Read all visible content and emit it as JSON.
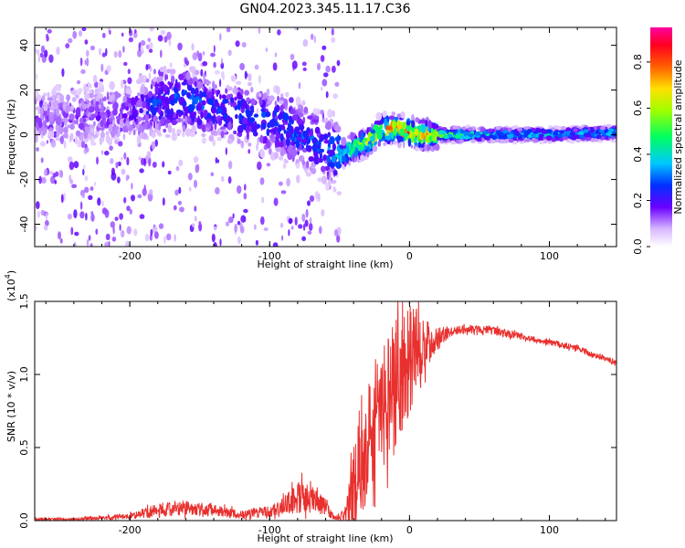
{
  "title": "GN04.2023.345.11.17.C36",
  "chart_data": [
    {
      "type": "heatmap",
      "xlabel": "Height of straight line (km)",
      "ylabel": "Frequency (Hz)",
      "xlim": [
        -268,
        148
      ],
      "ylim": [
        -50,
        48
      ],
      "xticks": [
        -200,
        -100,
        0,
        100
      ],
      "xtick_labels": [
        "-200",
        "-100",
        "0",
        "100"
      ],
      "yticks": [
        -40,
        -20,
        0,
        20,
        40
      ],
      "ytick_labels": [
        "-40",
        "-20",
        "0",
        "20",
        "40"
      ],
      "colorbar": {
        "label": "Normalized spectral amplitude",
        "range": [
          0,
          0.95
        ],
        "ticks": [
          0.0,
          0.2,
          0.4,
          0.6,
          0.8
        ],
        "tick_labels": [
          "0.0",
          "0.2",
          "0.4",
          "0.6",
          "0.8"
        ],
        "colormap": "rainbow (white-violet-blue-cyan-green-yellow-red-magenta)"
      },
      "ridge": {
        "x": [
          -260,
          -200,
          -180,
          -160,
          -140,
          -120,
          -100,
          -80,
          -60,
          -50,
          -40,
          -30,
          -20,
          -10,
          0,
          10,
          20,
          50,
          100,
          148
        ],
        "freq": [
          8,
          10,
          14,
          16,
          12,
          9,
          6,
          1,
          -6,
          -9,
          -6,
          -3,
          2,
          3,
          1,
          0,
          0,
          0,
          0,
          1
        ],
        "amplitude": [
          0.15,
          0.18,
          0.3,
          0.32,
          0.28,
          0.28,
          0.3,
          0.32,
          0.3,
          0.42,
          0.6,
          0.7,
          0.8,
          0.85,
          0.9,
          0.85,
          0.6,
          0.45,
          0.4,
          0.42
        ]
      }
    },
    {
      "type": "line",
      "xlabel": "Height of straight line (km)",
      "ylabel": "SNR (10 * v/v)",
      "multiplier_label": "(x10",
      "multiplier_exp": "4",
      "multiplier_close": ")",
      "xlim": [
        -268,
        148
      ],
      "ylim": [
        0,
        1.5
      ],
      "xticks": [
        -200,
        -100,
        0,
        100
      ],
      "xtick_labels": [
        "-200",
        "-100",
        "0",
        "100"
      ],
      "yticks": [
        0,
        0.5,
        1.0,
        1.5
      ],
      "ytick_labels": [
        "0.0",
        "0.5",
        "1.0",
        "1.5"
      ],
      "color": "#e8302e",
      "series": [
        {
          "x": [
            -268,
            -240,
            -200,
            -180,
            -160,
            -140,
            -120,
            -100,
            -90,
            -80,
            -70,
            -60,
            -55,
            -50,
            -45,
            -40,
            -35,
            -30,
            -25,
            -20,
            -15,
            -10,
            -5,
            0,
            5,
            10,
            20,
            30,
            40,
            50,
            60,
            70,
            80,
            90,
            100,
            110,
            120,
            130,
            140,
            148
          ],
          "values": [
            0.01,
            0.01,
            0.03,
            0.07,
            0.09,
            0.07,
            0.04,
            0.06,
            0.1,
            0.17,
            0.14,
            0.1,
            0.03,
            0.02,
            0.05,
            0.25,
            0.4,
            0.55,
            0.7,
            0.75,
            0.85,
            0.95,
            1.0,
            1.1,
            1.18,
            1.2,
            1.25,
            1.29,
            1.31,
            1.31,
            1.3,
            1.28,
            1.26,
            1.24,
            1.22,
            1.2,
            1.18,
            1.14,
            1.11,
            1.08
          ],
          "spread": [
            0.01,
            0.01,
            0.02,
            0.05,
            0.05,
            0.04,
            0.03,
            0.04,
            0.06,
            0.12,
            0.1,
            0.07,
            0.02,
            0.02,
            0.06,
            0.35,
            0.45,
            0.4,
            0.45,
            0.45,
            0.45,
            0.45,
            0.4,
            0.4,
            0.3,
            0.2,
            0.08,
            0.03,
            0.03,
            0.03,
            0.03,
            0.03,
            0.02,
            0.02,
            0.02,
            0.02,
            0.02,
            0.02,
            0.02,
            0.02
          ]
        }
      ]
    }
  ]
}
